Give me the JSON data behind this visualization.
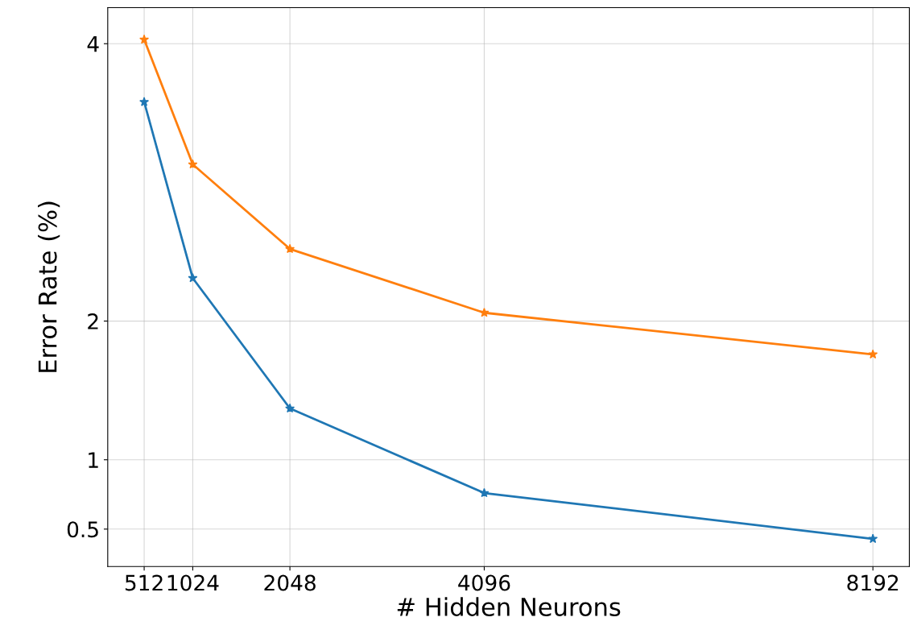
{
  "chart_data": {
    "type": "line",
    "xlabel": "# Hidden Neurons",
    "ylabel": "Error Rate (%)",
    "x": [
      512,
      1024,
      2048,
      4096,
      8192
    ],
    "series": [
      {
        "color": "#1f77b4",
        "values": [
          3.58,
          2.31,
          1.37,
          0.76,
          0.43
        ]
      },
      {
        "color": "#ff7f0e",
        "values": [
          4.03,
          3.13,
          2.52,
          2.06,
          1.76
        ]
      }
    ],
    "xlim": [
      128,
      8576
    ],
    "xticks": [
      512,
      1024,
      2048,
      4096,
      8192
    ],
    "ylim": [
      0.23,
      4.26
    ],
    "yticks": [
      0.5,
      1,
      2,
      4
    ],
    "grid": true,
    "marker": "star",
    "line_style": "solid"
  }
}
